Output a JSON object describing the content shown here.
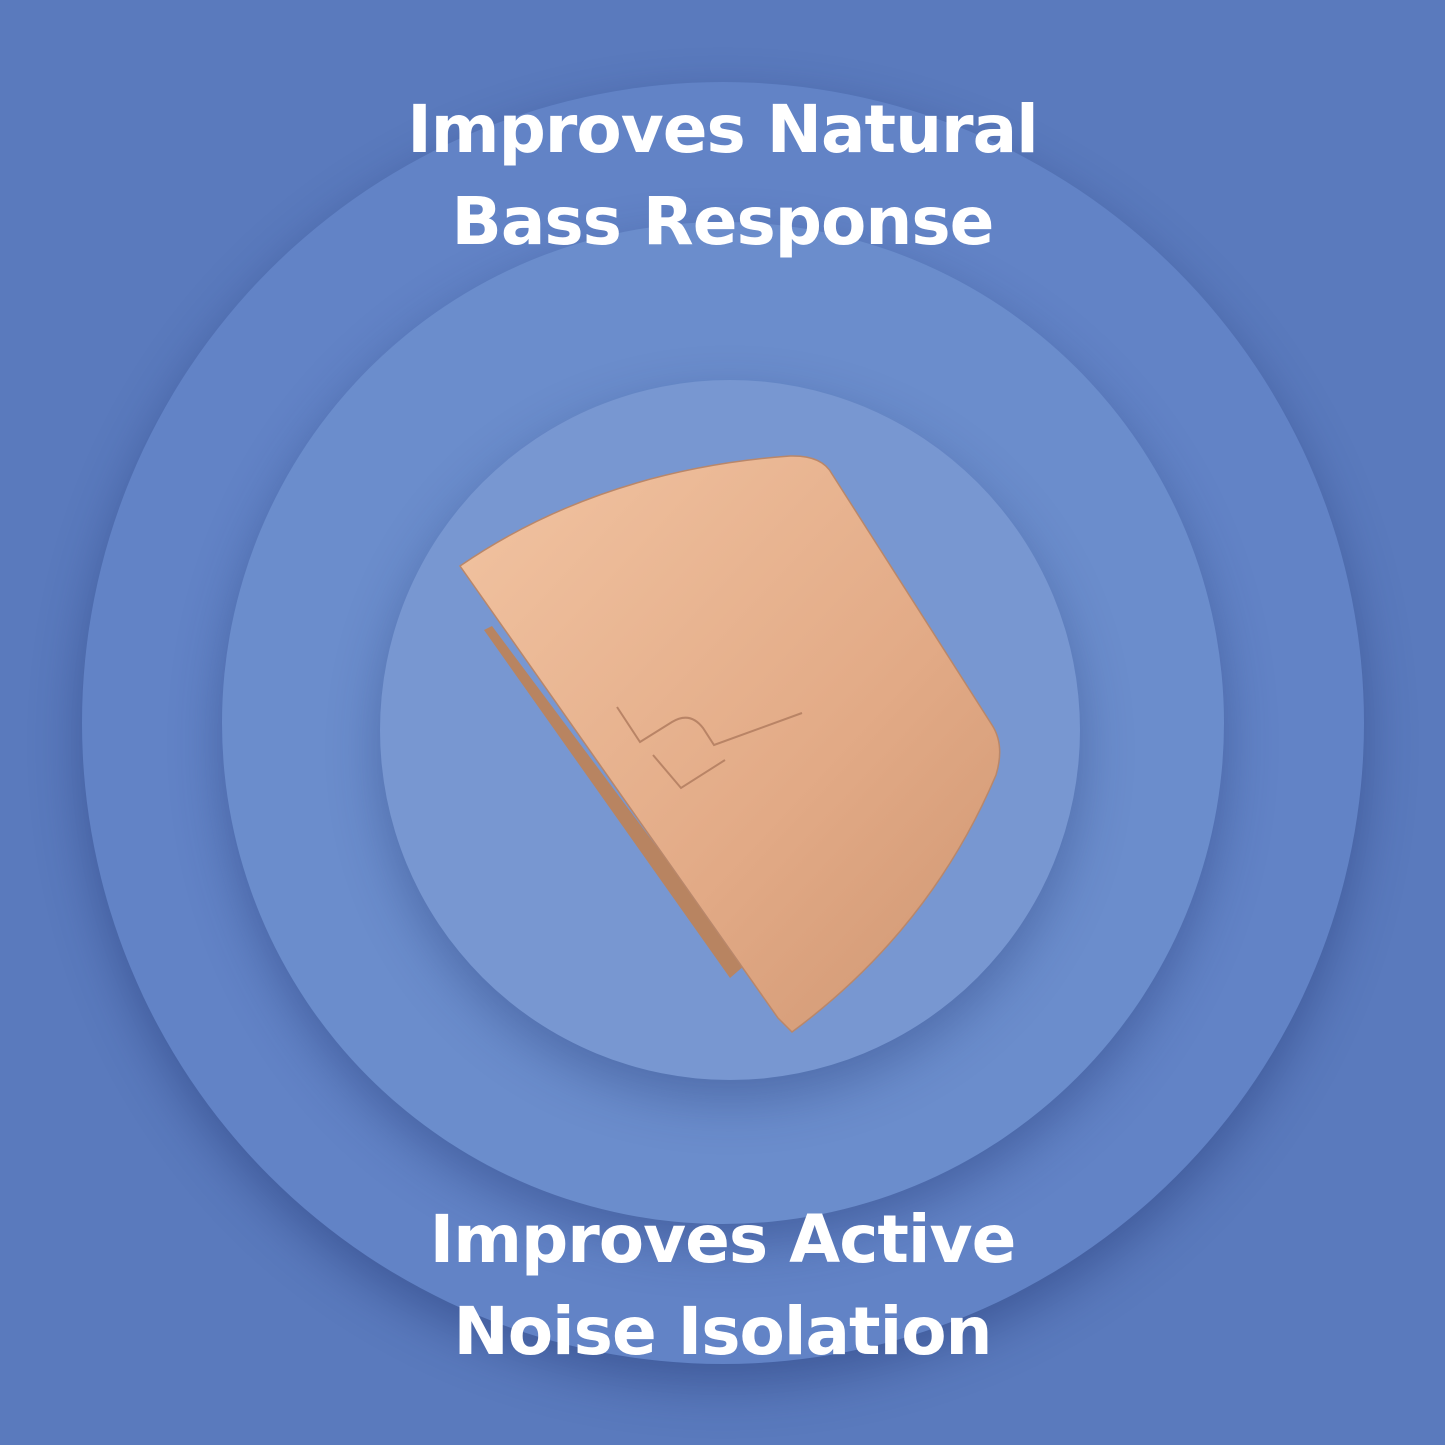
{
  "headline_top": {
    "line1": "Improves Natural",
    "line2": "Bass Response"
  },
  "headline_bottom": {
    "line1": "Improves Active",
    "line2": "Noise Isolation"
  },
  "colors": {
    "background": "#5a7abd",
    "text": "#ffffff",
    "product": "#e8b08c"
  },
  "product": {
    "icon": "ear-tip-product-with-logo"
  }
}
